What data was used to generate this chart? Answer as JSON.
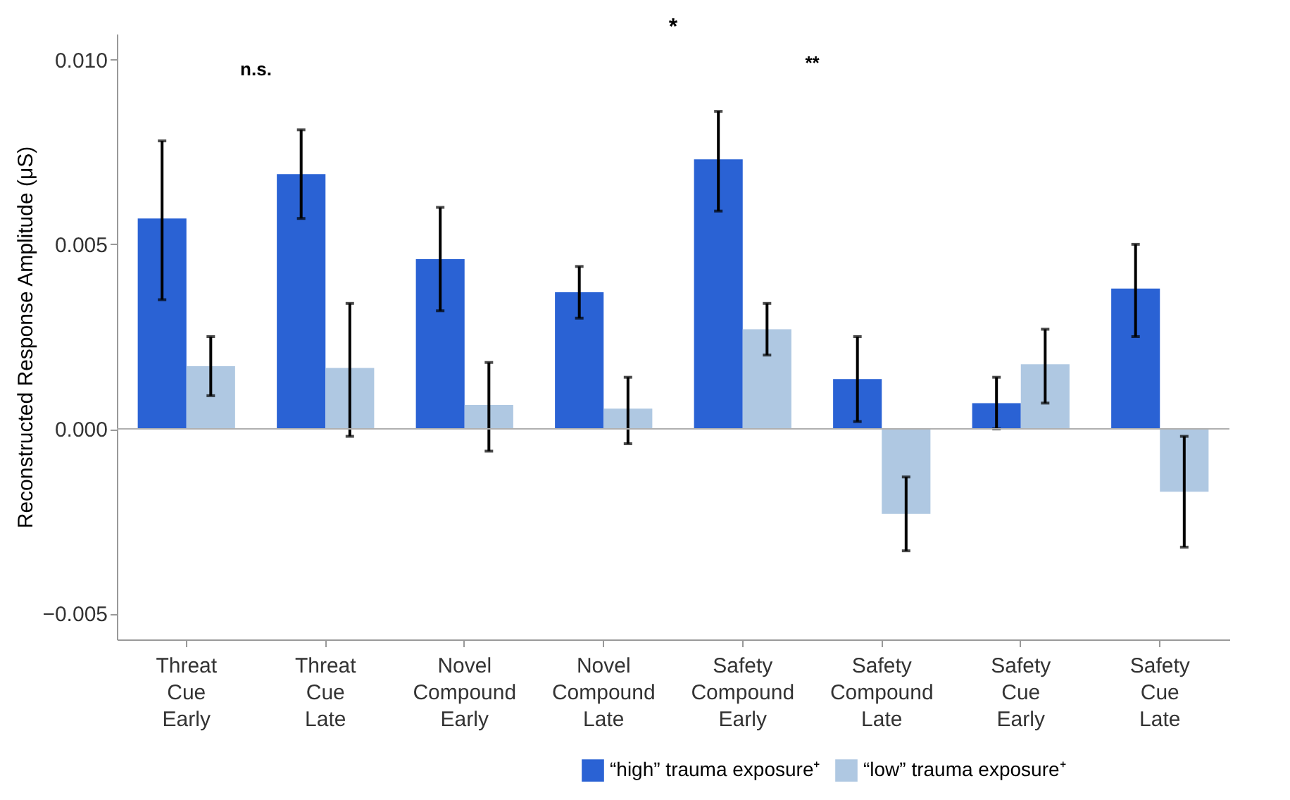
{
  "chart_data": {
    "type": "bar",
    "ylabel": "Reconstructed Response Amplitude (μS)",
    "categories": [
      "Threat Cue Early",
      "Threat Cue Late",
      "Novel Compound Early",
      "Novel Compound Late",
      "Safety Compound Early",
      "Safety Compound Late",
      "Safety Cue Early",
      "Safety Cue Late"
    ],
    "series": [
      {
        "name": "“high” trauma exposure⁺",
        "color": "#2a62d4",
        "values": [
          0.0057,
          0.0069,
          0.0046,
          0.0037,
          0.0073,
          0.00135,
          0.0007,
          0.0038
        ],
        "errors": [
          [
            0.0035,
            0.0078
          ],
          [
            0.0057,
            0.0081
          ],
          [
            0.0032,
            0.006
          ],
          [
            0.003,
            0.0044
          ],
          [
            0.0059,
            0.0086
          ],
          [
            0.0002,
            0.0025
          ],
          [
            0.0,
            0.0014
          ],
          [
            0.0025,
            0.005
          ]
        ]
      },
      {
        "name": "“low” trauma exposure⁺",
        "color": "#afc8e2",
        "values": [
          0.0017,
          0.00165,
          0.00065,
          0.00055,
          0.0027,
          -0.0023,
          0.00175,
          -0.0017
        ],
        "errors": [
          [
            0.0009,
            0.0025
          ],
          [
            -0.0002,
            0.0034
          ],
          [
            -0.0006,
            0.0018
          ],
          [
            -0.0004,
            0.0014
          ],
          [
            0.002,
            0.0034
          ],
          [
            -0.0033,
            -0.0013
          ],
          [
            0.0007,
            0.0027
          ],
          [
            -0.0032,
            -0.0002
          ]
        ]
      }
    ],
    "ylim": [
      -0.0057,
      0.0107
    ],
    "yticks": [
      {
        "value": -0.005,
        "label": "−0.005"
      },
      {
        "value": 0,
        "label": "0.000"
      },
      {
        "value": 0.005,
        "label": "0.005"
      },
      {
        "value": 0.01,
        "label": "0.010"
      }
    ],
    "ref_lines": [
      {
        "axis": "y",
        "value": 0,
        "color": "#b0b0b0"
      }
    ],
    "annotations": [
      "*",
      "n.s.",
      "**"
    ],
    "grid": false,
    "legend": "bottom right"
  }
}
